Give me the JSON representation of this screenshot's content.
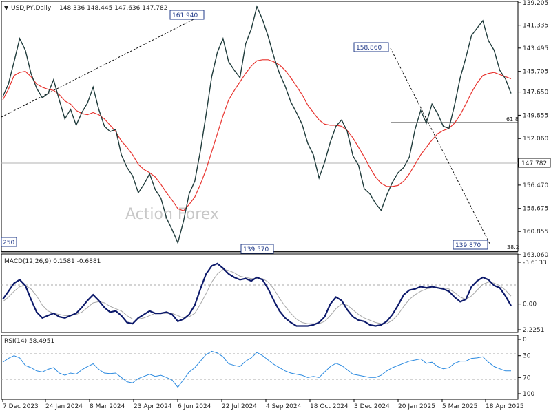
{
  "header": {
    "dropdown_glyph": "▼",
    "symbol": "USDJPY,Daily",
    "ohlc": "148.336 148.445 147.636 147.782"
  },
  "watermark": "Action Forex",
  "chart_data": [
    {
      "type": "line",
      "panel": "price",
      "y_ticks": [
        "163.060",
        "160.855",
        "158.675",
        "156.470",
        "154.265",
        "152.060",
        "149.855",
        "147.650",
        "145.705",
        "143.495",
        "141.335",
        "139.205"
      ],
      "ylim": [
        139.205,
        163.06
      ],
      "x_ticks": [
        "7 Dec 2023",
        "24 Jan 2024",
        "8 Mar 2024",
        "23 Apr 2024",
        "6 Jun 2024",
        "22 Jul 2024",
        "4 Sep 2024",
        "18 Oct 2024",
        "3 Dec 2024",
        "20 Jan 2025",
        "5 Mar 2025",
        "18 Apr 2025"
      ],
      "current_price": 147.782,
      "current_price_label": "147.782",
      "series": [
        {
          "values": [
            148.1,
            146.9,
            144.8,
            142.6,
            143.7,
            145.9,
            147.3,
            148.2,
            147.8,
            146.5,
            148.4,
            150.2,
            149.3,
            150.8,
            149.6,
            148.7,
            147.2,
            149.3,
            150.9,
            151.4,
            151.2,
            153.6,
            154.8,
            155.6,
            157.2,
            156.4,
            155.4,
            156.9,
            157.7,
            159.6,
            160.7,
            161.94,
            159.9,
            157.3,
            156.1,
            153.2,
            149.8,
            146.2,
            143.9,
            142.6,
            144.8,
            145.6,
            146.3,
            143.1,
            141.7,
            139.57,
            140.8,
            142.4,
            144.3,
            145.9,
            147.1,
            148.6,
            149.6,
            150.7,
            152.5,
            153.6,
            155.8,
            154.3,
            152.4,
            150.9,
            150.3,
            151.4,
            153.7,
            154.6,
            156.8,
            157.3,
            158.2,
            158.86,
            157.4,
            156.2,
            155.3,
            154.8,
            153.8,
            151.2,
            149.4,
            150.6,
            148.8,
            149.7,
            150.9,
            151.1,
            148.9,
            146.3,
            144.4,
            142.3,
            141.6,
            140.9,
            142.8,
            143.7,
            145.6,
            146.4,
            147.782
          ]
        },
        {
          "values": [
            148.4,
            147.4,
            146.1,
            145.8,
            145.7,
            146.2,
            146.9,
            147.2,
            147.4,
            147.5,
            147.9,
            148.5,
            148.8,
            149.4,
            149.7,
            149.8,
            149.6,
            149.8,
            150.2,
            150.8,
            151.4,
            152.3,
            152.9,
            153.6,
            154.5,
            155.0,
            155.3,
            155.7,
            156.4,
            157.2,
            157.9,
            158.7,
            158.9,
            158.3,
            157.6,
            156.4,
            155.0,
            153.3,
            151.6,
            149.9,
            148.4,
            147.5,
            146.7,
            145.9,
            145.2,
            144.7,
            144.6,
            144.6,
            144.8,
            145.1,
            145.6,
            146.3,
            147.1,
            147.9,
            148.9,
            149.6,
            150.3,
            150.7,
            150.8,
            150.8,
            150.9,
            151.3,
            152.0,
            152.9,
            153.8,
            154.8,
            155.7,
            156.3,
            156.6,
            156.6,
            156.5,
            156.1,
            155.4,
            154.5,
            153.6,
            152.9,
            152.2,
            151.6,
            151.3,
            151.1,
            150.6,
            149.8,
            148.8,
            147.7,
            146.8,
            146.1,
            145.9,
            145.8,
            146.0,
            146.2,
            146.4
          ]
        }
      ],
      "series_colors": [
        "#1f3b3b",
        "#e8332e"
      ],
      "annotations": {
        "peak_left_label": "161.940",
        "peak_right_label": "158.860",
        "low_left_label": "139.570",
        "low_right_label": "139.870",
        "edge_left_label": "250",
        "fib_label_top": "61.8",
        "fib_label_bottom": "38.2"
      }
    },
    {
      "type": "line",
      "panel": "macd",
      "title": "MACD(12,26,9) 0.1581 -0.6881",
      "y_ticks": [
        "2.2251",
        "0.00",
        "-3.6133"
      ],
      "ylim": [
        -3.6133,
        2.2251
      ],
      "series": [
        {
          "values": [
            -0.4,
            -1.1,
            -1.8,
            -2.1,
            -1.6,
            -0.4,
            0.7,
            1.2,
            1.0,
            0.8,
            1.1,
            1.2,
            1.0,
            0.8,
            0.3,
            -0.3,
            -0.8,
            -0.3,
            0.3,
            0.7,
            0.6,
            1.0,
            1.6,
            1.7,
            1.2,
            0.9,
            0.6,
            0.8,
            0.8,
            0.7,
            0.9,
            1.5,
            1.3,
            0.9,
            0.1,
            -1.3,
            -2.6,
            -3.3,
            -3.5,
            -3.1,
            -2.6,
            -2.3,
            -2.1,
            -2.2,
            -2.0,
            -2.3,
            -2.1,
            -1.3,
            -0.3,
            0.6,
            1.2,
            1.6,
            1.9,
            1.9,
            1.9,
            1.8,
            1.6,
            1.1,
            0.0,
            -0.6,
            -0.3,
            0.5,
            1.1,
            1.4,
            1.5,
            1.8,
            1.9,
            1.8,
            1.5,
            0.9,
            0.1,
            -0.8,
            -1.2,
            -1.3,
            -1.5,
            -1.4,
            -1.5,
            -1.4,
            -1.3,
            -1.1,
            -0.6,
            -0.2,
            -0.4,
            -1.5,
            -2.0,
            -2.3,
            -2.1,
            -1.6,
            -1.4,
            -0.7,
            0.15
          ]
        },
        {
          "values": [
            -0.2,
            -0.6,
            -1.1,
            -1.5,
            -1.6,
            -1.3,
            -0.7,
            0.1,
            0.6,
            0.8,
            0.9,
            1.0,
            1.0,
            0.9,
            0.7,
            0.3,
            -0.1,
            -0.2,
            -0.1,
            0.2,
            0.4,
            0.6,
            1.0,
            1.3,
            1.3,
            1.2,
            1.0,
            0.8,
            0.8,
            0.8,
            0.8,
            1.0,
            1.2,
            1.1,
            0.8,
            0.0,
            -0.9,
            -1.9,
            -2.6,
            -3.0,
            -2.9,
            -2.7,
            -2.4,
            -2.3,
            -2.2,
            -2.2,
            -2.2,
            -1.9,
            -1.3,
            -0.5,
            0.2,
            0.8,
            1.3,
            1.6,
            1.7,
            1.7,
            1.7,
            1.5,
            1.0,
            0.4,
            0.0,
            0.1,
            0.5,
            0.9,
            1.2,
            1.4,
            1.6,
            1.7,
            1.7,
            1.4,
            0.9,
            0.2,
            -0.4,
            -0.8,
            -1.1,
            -1.3,
            -1.4,
            -1.4,
            -1.4,
            -1.3,
            -1.0,
            -0.6,
            -0.4,
            -0.7,
            -1.2,
            -1.7,
            -1.9,
            -1.8,
            -1.6,
            -1.2,
            -0.69
          ]
        }
      ],
      "series_colors": [
        "#0d1a6b",
        "#a8a8a8"
      ],
      "zero_line": 0
    },
    {
      "type": "line",
      "panel": "rsi",
      "title": "RSI(14) 58.4951",
      "y_ticks": [
        "100",
        "70",
        "30",
        "0"
      ],
      "ylim": [
        0,
        100
      ],
      "levels": [
        70,
        30
      ],
      "series": [
        {
          "values": [
            42,
            35,
            30,
            34,
            48,
            52,
            58,
            60,
            55,
            52,
            62,
            66,
            62,
            64,
            56,
            50,
            45,
            55,
            62,
            63,
            62,
            70,
            78,
            80,
            72,
            68,
            64,
            68,
            66,
            70,
            75,
            88,
            74,
            60,
            52,
            40,
            28,
            22,
            25,
            32,
            45,
            48,
            50,
            40,
            34,
            24,
            30,
            38,
            46,
            52,
            58,
            62,
            64,
            66,
            70,
            68,
            70,
            60,
            50,
            44,
            48,
            56,
            64,
            66,
            68,
            70,
            70,
            66,
            58,
            52,
            48,
            44,
            40,
            38,
            36,
            44,
            42,
            50,
            54,
            52,
            44,
            40,
            40,
            35,
            34,
            32,
            42,
            50,
            54,
            58,
            58
          ]
        }
      ],
      "series_colors": [
        "#2b8ae0"
      ]
    }
  ]
}
